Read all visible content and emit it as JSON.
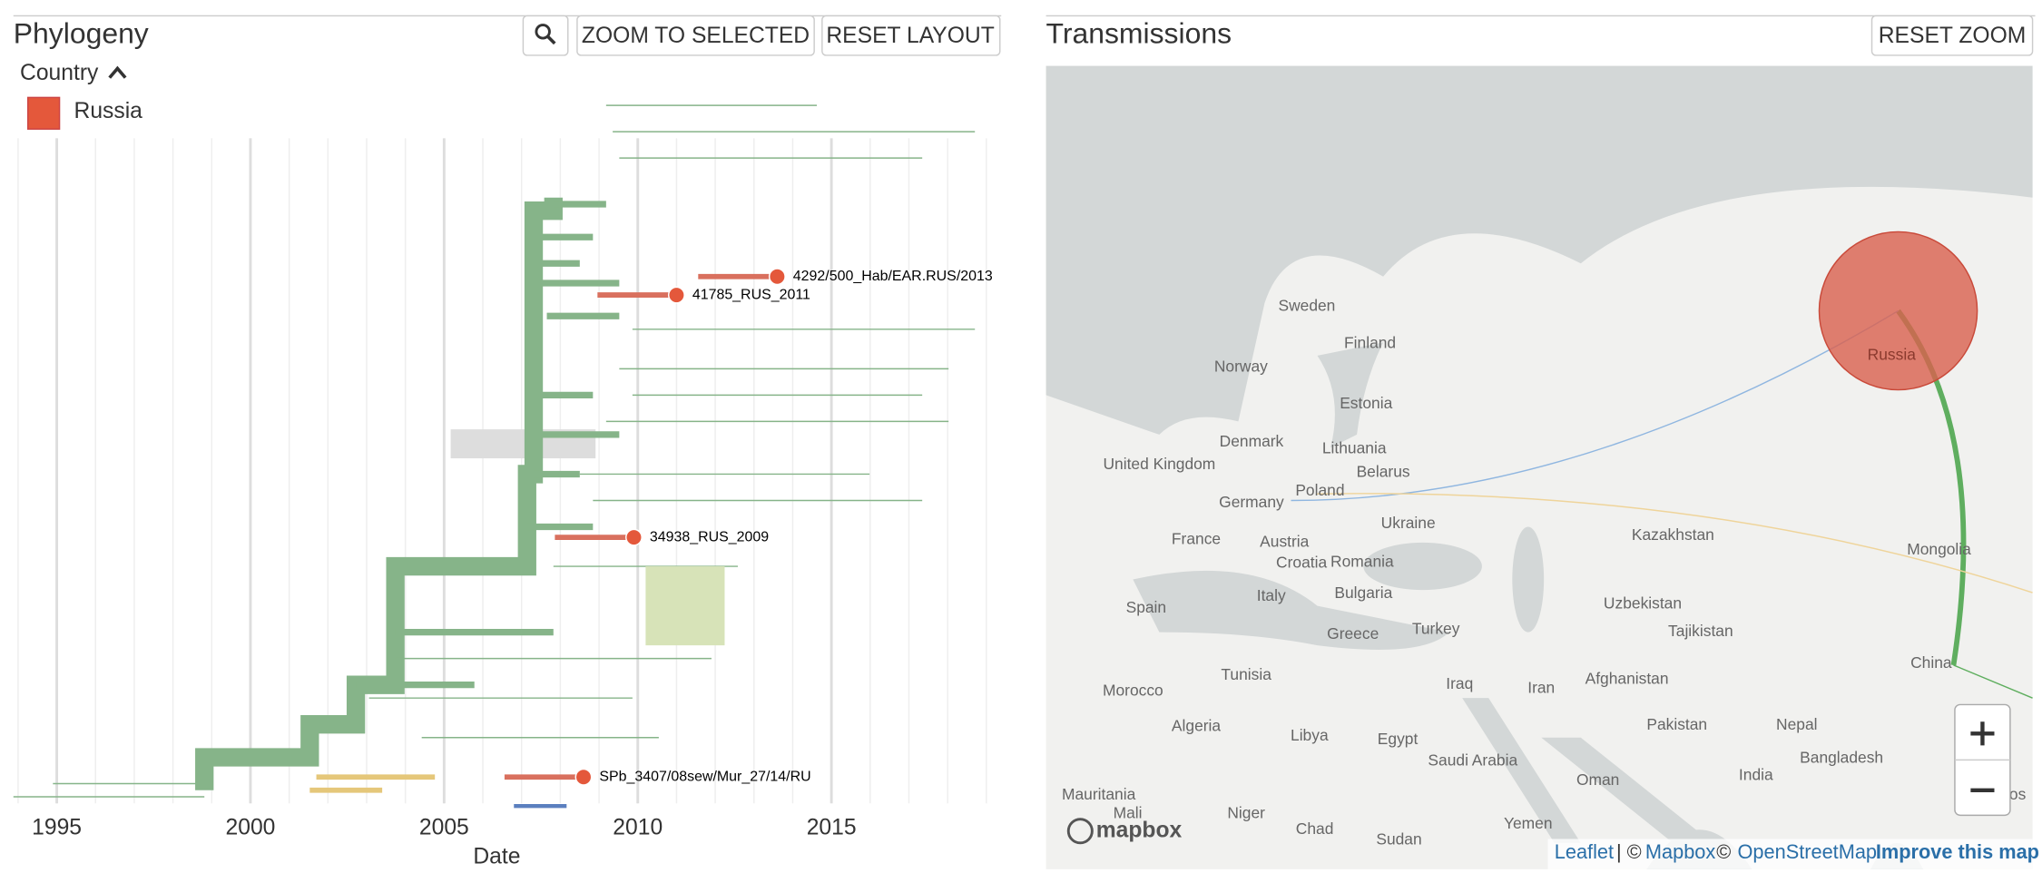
{
  "phylogeny": {
    "title": "Phylogeny",
    "buttons": [
      "ZOOM TO SELECTED",
      "RESET LAYOUT"
    ],
    "legend": {
      "title": "Country",
      "items": [
        {
          "label": "Russia",
          "color": "#e4583b"
        }
      ]
    },
    "axis": {
      "label": "Date",
      "xlim": [
        1993.88,
        2019.35
      ],
      "ticks": [
        1995,
        2000,
        2005,
        2010,
        2015
      ]
    },
    "tips": [
      {
        "label": "41785_RUS_2011",
        "date": 2011.0
      },
      {
        "label": "4292/500_Hab/EAR.RUS/2013",
        "date": 2013.6
      },
      {
        "label": "34938_RUS_2009",
        "date": 2009.9
      },
      {
        "label": "SPb_3407/08sew/Mur_27/14/RU",
        "date": 2008.6
      }
    ]
  },
  "map": {
    "title": "Transmissions",
    "button": "RESET ZOOM",
    "labels": [
      "Sweden",
      "Finland",
      "Norway",
      "Estonia",
      "Denmark",
      "Lithuania",
      "United Kingdom",
      "Belarus",
      "Poland",
      "Germany",
      "Ukraine",
      "France",
      "Austria",
      "Croatia",
      "Romania",
      "Kazakhstan",
      "Mongolia",
      "Spain",
      "Italy",
      "Bulgaria",
      "Uzbekistan",
      "Greece",
      "Turkey",
      "Tajikistan",
      "Tunisia",
      "Morocco",
      "Iraq",
      "Iran",
      "Afghanistan",
      "Algeria",
      "Libya",
      "Egypt",
      "Saudi Arabia",
      "Pakistan",
      "Nepal",
      "Bangladesh",
      "India",
      "China",
      "Oman",
      "Yemen",
      "Mali",
      "Niger",
      "Chad",
      "Sudan",
      "Mauritania",
      "Laos"
    ],
    "region": "Russia",
    "logo": "mapbox",
    "attribution": [
      "Leaflet",
      "| ©",
      "Mapbox",
      "©",
      "OpenStreetMap",
      "Improve this map"
    ]
  }
}
